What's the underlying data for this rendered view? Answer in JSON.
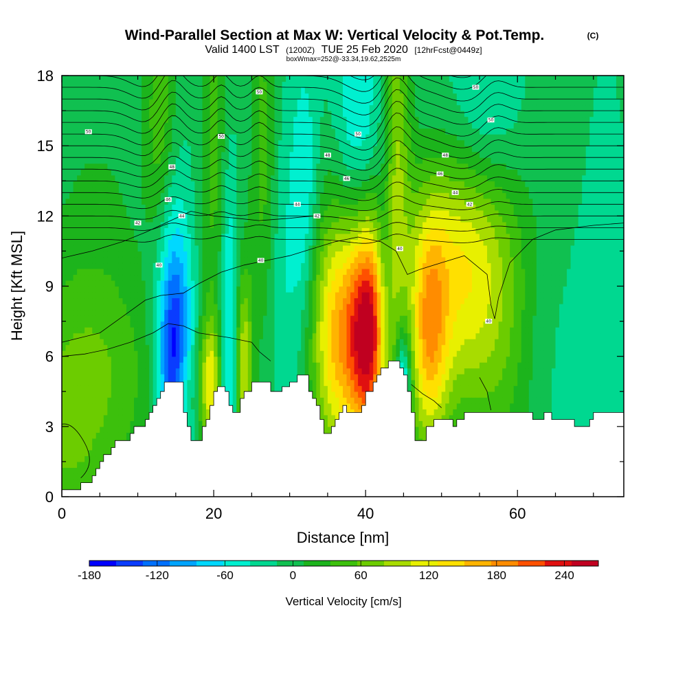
{
  "chart_data": {
    "type": "contour-cross-section",
    "title": "Wind-Parallel Section at Max W: Vertical Velocity & Pot.Temp.",
    "title_suffix": "(C)",
    "subtitle": {
      "valid": "Valid 1400 LST",
      "utc": "(1200Z)",
      "date": "TUE 25 Feb 2020",
      "forecast": "[12hrFcst@0449z]"
    },
    "info": "boxWmax=252@-33.34,19.62,2525m",
    "xlabel": "Distance [nm]",
    "ylabel": "Height [Kft MSL]",
    "xlim": [
      0,
      74
    ],
    "ylim": [
      0,
      18
    ],
    "x_ticks": [
      0,
      20,
      40,
      60
    ],
    "y_ticks": [
      0,
      3,
      6,
      9,
      12,
      15,
      18
    ],
    "colorbar": {
      "label": "Vertical Velocity [cm/s]",
      "tick_labels": [
        "-180",
        "-120",
        "-60",
        "0",
        "60",
        "120",
        "180",
        "240"
      ],
      "tick_values": [
        -180,
        -120,
        -60,
        0,
        60,
        120,
        180,
        240
      ],
      "range": [
        -180,
        270
      ],
      "bins": 18,
      "colors": [
        "#0000ff",
        "#0a3cff",
        "#0070ff",
        "#00a4ff",
        "#00d8ff",
        "#00f0d0",
        "#00d890",
        "#10c050",
        "#1cb41c",
        "#3cc00c",
        "#6ccc00",
        "#a8dc00",
        "#e8f000",
        "#ffe000",
        "#ffb400",
        "#ff8c00",
        "#ff5000",
        "#e01010",
        "#c00020"
      ]
    },
    "vertical_velocity_cells": [
      {
        "x": 0,
        "z": 2.5,
        "w": 65,
        "sx": 6,
        "sz": 5
      },
      {
        "x": 7,
        "z": 5.5,
        "w": 35,
        "sx": 6,
        "sz": 3
      },
      {
        "x": 15,
        "z": 5.5,
        "w": -150,
        "sx": 1.5,
        "sz": 3
      },
      {
        "x": 14,
        "z": 9.5,
        "w": -80,
        "sx": 1.8,
        "sz": 4
      },
      {
        "x": 16,
        "z": 4.5,
        "w": 60,
        "sx": 1.0,
        "sz": 1.5
      },
      {
        "x": 13,
        "z": 15,
        "w": 75,
        "sx": 1.5,
        "sz": 5
      },
      {
        "x": 19.5,
        "z": 4.8,
        "w": 130,
        "sx": 1.0,
        "sz": 2
      },
      {
        "x": 22,
        "z": 6.5,
        "w": -75,
        "sx": 0.8,
        "sz": 5
      },
      {
        "x": 24,
        "z": 5.5,
        "w": 120,
        "sx": 0.8,
        "sz": 3
      },
      {
        "x": 20,
        "z": 15,
        "w": 55,
        "sx": 1.2,
        "sz": 6
      },
      {
        "x": 26.5,
        "z": 14,
        "w": 60,
        "sx": 1.2,
        "sz": 6
      },
      {
        "x": 30,
        "z": 9,
        "w": -35,
        "sx": 2.5,
        "sz": 5
      },
      {
        "x": 32,
        "z": 13,
        "w": -45,
        "sx": 1.2,
        "sz": 4
      },
      {
        "x": 36.3,
        "z": 7,
        "w": 175,
        "sx": 2.7,
        "sz": 3.8
      },
      {
        "x": 40.5,
        "z": 7,
        "w": 250,
        "sx": 1.9,
        "sz": 3.5
      },
      {
        "x": 42.5,
        "z": 9,
        "w": -60,
        "sx": 0.8,
        "sz": 4.5
      },
      {
        "x": 45,
        "z": 5,
        "w": -110,
        "sx": 0.7,
        "sz": 1.5
      },
      {
        "x": 44,
        "z": 15,
        "w": 90,
        "sx": 1.3,
        "sz": 5
      },
      {
        "x": 39,
        "z": 16,
        "w": -60,
        "sx": 2.0,
        "sz": 4
      },
      {
        "x": 48.3,
        "z": 6.8,
        "w": 150,
        "sx": 1.8,
        "sz": 3.5
      },
      {
        "x": 53,
        "z": 8,
        "w": 110,
        "sx": 4.0,
        "sz": 3.5
      },
      {
        "x": 52,
        "z": 11.5,
        "w": 60,
        "sx": 5,
        "sz": 2.5
      },
      {
        "x": 59,
        "z": 7,
        "w": 40,
        "sx": 3,
        "sz": 5
      },
      {
        "x": 63,
        "z": 9,
        "w": -15,
        "sx": 3,
        "sz": 8
      },
      {
        "x": 70,
        "z": 10,
        "w": -30,
        "sx": 2.5,
        "sz": 6
      },
      {
        "x": 56,
        "z": 17,
        "w": -35,
        "sx": 3,
        "sz": 3
      },
      {
        "x": 66,
        "z": 15,
        "w": 30,
        "sx": 3,
        "sz": 4
      },
      {
        "x": 5,
        "z": 12,
        "w": 20,
        "sx": 4,
        "sz": 4
      }
    ],
    "terrain_kft": [
      [
        0,
        0.3
      ],
      [
        2,
        0.3
      ],
      [
        2.5,
        0.6
      ],
      [
        4,
        0.9
      ],
      [
        4.5,
        1.2
      ],
      [
        5,
        1.5
      ],
      [
        5.5,
        1.8
      ],
      [
        6.5,
        2.1
      ],
      [
        7,
        2.4
      ],
      [
        8.5,
        2.4
      ],
      [
        9,
        2.7
      ],
      [
        9.5,
        3.0
      ],
      [
        10.5,
        3.0
      ],
      [
        11,
        3.3
      ],
      [
        11.5,
        3.6
      ],
      [
        12,
        3.9
      ],
      [
        12.5,
        4.2
      ],
      [
        13,
        4.5
      ],
      [
        13.5,
        4.9
      ],
      [
        14,
        4.9
      ],
      [
        15.5,
        4.9
      ],
      [
        16,
        3.6
      ],
      [
        16.5,
        3.0
      ],
      [
        17,
        2.4
      ],
      [
        18,
        2.4
      ],
      [
        18.5,
        3.0
      ],
      [
        19,
        3.3
      ],
      [
        19.5,
        3.9
      ],
      [
        20,
        4.5
      ],
      [
        20.5,
        4.7
      ],
      [
        21,
        4.7
      ],
      [
        21.5,
        4.5
      ],
      [
        22,
        3.9
      ],
      [
        22.5,
        3.6
      ],
      [
        23,
        3.6
      ],
      [
        23.5,
        4.2
      ],
      [
        24,
        4.5
      ],
      [
        25,
        4.9
      ],
      [
        27,
        4.9
      ],
      [
        27.5,
        4.5
      ],
      [
        28.5,
        4.5
      ],
      [
        29,
        4.7
      ],
      [
        30,
        4.9
      ],
      [
        31,
        5.2
      ],
      [
        32,
        5.2
      ],
      [
        32.5,
        4.5
      ],
      [
        33,
        4.2
      ],
      [
        33.5,
        3.9
      ],
      [
        34,
        3.3
      ],
      [
        34.5,
        2.7
      ],
      [
        35,
        2.7
      ],
      [
        35.5,
        3.0
      ],
      [
        36,
        3.3
      ],
      [
        36.5,
        3.6
      ],
      [
        37,
        3.9
      ],
      [
        37.5,
        3.6
      ],
      [
        38,
        3.6
      ],
      [
        39,
        3.6
      ],
      [
        39.5,
        3.9
      ],
      [
        40,
        4.5
      ],
      [
        41,
        4.9
      ],
      [
        41.5,
        5.2
      ],
      [
        42,
        5.5
      ],
      [
        43,
        5.8
      ],
      [
        44,
        5.8
      ],
      [
        44.5,
        5.5
      ],
      [
        45,
        5.2
      ],
      [
        45.5,
        4.5
      ],
      [
        46,
        3.6
      ],
      [
        46.5,
        2.4
      ],
      [
        47.5,
        2.4
      ],
      [
        48,
        3.0
      ],
      [
        49,
        3.3
      ],
      [
        50,
        3.3
      ],
      [
        51,
        3.3
      ],
      [
        51.5,
        3.0
      ],
      [
        52,
        3.3
      ],
      [
        53,
        3.6
      ],
      [
        56,
        3.6
      ],
      [
        61,
        3.6
      ],
      [
        62,
        3.3
      ],
      [
        63,
        3.3
      ],
      [
        63.5,
        3.6
      ],
      [
        64,
        3.6
      ],
      [
        64.5,
        3.3
      ],
      [
        65,
        3.3
      ],
      [
        66,
        3.3
      ],
      [
        67,
        3.3
      ],
      [
        67.5,
        3.0
      ],
      [
        69,
        3.0
      ],
      [
        69.5,
        3.3
      ],
      [
        70,
        3.6
      ],
      [
        74,
        3.6
      ]
    ],
    "isentrope_labels": [
      {
        "text": "50",
        "x": 3.5,
        "z": 15.6
      },
      {
        "text": "50",
        "x": 21,
        "z": 15.4
      },
      {
        "text": "50",
        "x": 26,
        "z": 17.3
      },
      {
        "text": "50",
        "x": 39,
        "z": 15.5
      },
      {
        "text": "50",
        "x": 54.5,
        "z": 17.5
      },
      {
        "text": "50",
        "x": 56.5,
        "z": 16.1
      },
      {
        "text": "48",
        "x": 14.5,
        "z": 14.1
      },
      {
        "text": "48",
        "x": 35,
        "z": 14.6
      },
      {
        "text": "48",
        "x": 50.5,
        "z": 14.6
      },
      {
        "text": "46",
        "x": 14,
        "z": 12.7
      },
      {
        "text": "46",
        "x": 37.5,
        "z": 13.6
      },
      {
        "text": "46",
        "x": 49.8,
        "z": 13.8
      },
      {
        "text": "44",
        "x": 15.8,
        "z": 12.0
      },
      {
        "text": "44",
        "x": 31,
        "z": 12.5
      },
      {
        "text": "44",
        "x": 51.8,
        "z": 13.0
      },
      {
        "text": "42",
        "x": 10,
        "z": 11.7
      },
      {
        "text": "42",
        "x": 33.6,
        "z": 12.0
      },
      {
        "text": "42",
        "x": 53.7,
        "z": 12.5
      },
      {
        "text": "40",
        "x": 12.8,
        "z": 9.9
      },
      {
        "text": "40",
        "x": 26.2,
        "z": 10.1
      },
      {
        "text": "40",
        "x": 44.5,
        "z": 10.6
      },
      {
        "text": "40",
        "x": 56.2,
        "z": 7.5
      }
    ]
  }
}
